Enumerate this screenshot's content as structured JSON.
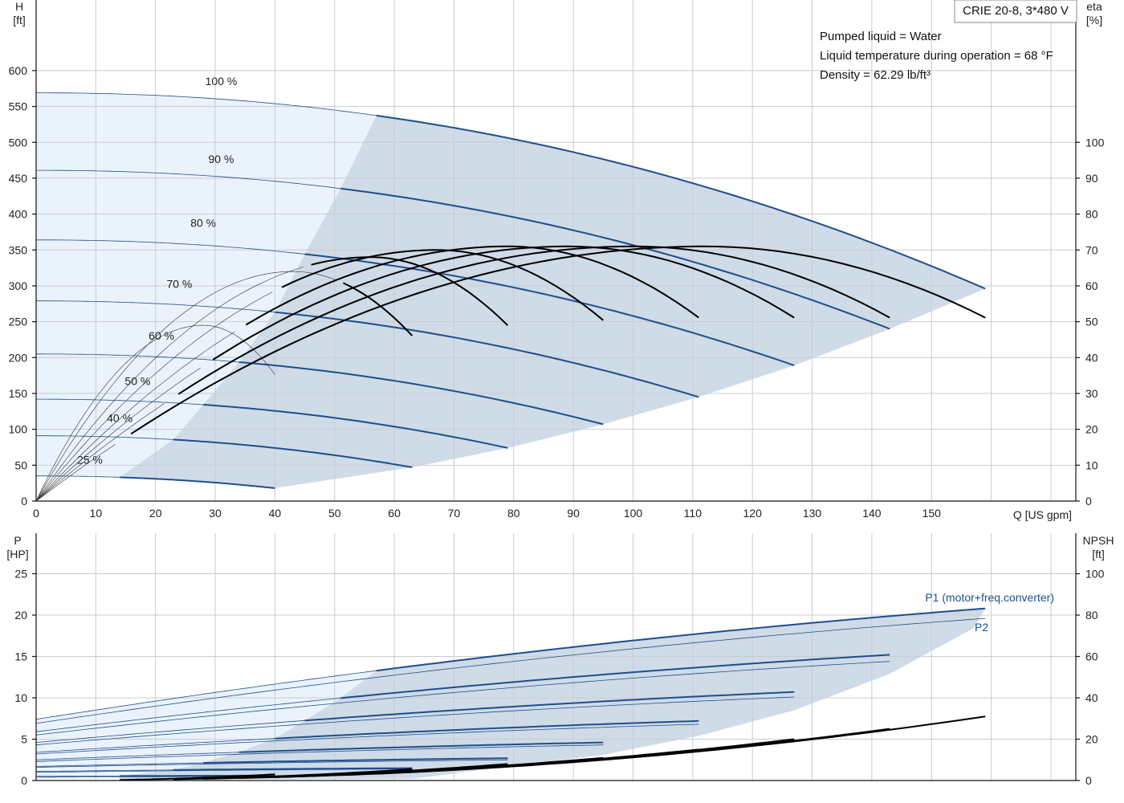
{
  "product_label": "CRIE 20-8, 3*480 V",
  "info_lines": [
    "Pumped liquid = Water",
    "Liquid temperature during operation = 68 °F",
    "Density = 62.29 lb/ft³"
  ],
  "colors": {
    "pump_curve": "#1f4e8c",
    "power_curve": "#1f4e8c",
    "efficiency_curve": "#000000",
    "region_light": "#eaf3fb",
    "region_dark": "#cfdbe7",
    "grid": "#c8ccd2"
  },
  "chart_data": [
    {
      "type": "line",
      "name": "head-efficiency",
      "xlabel": "Q [US gpm]",
      "ylabel_left": [
        "H",
        "[ft]"
      ],
      "ylabel_right": [
        "eta",
        "[%]"
      ],
      "xlim": [
        0,
        160
      ],
      "ylim_left": [
        0,
        630
      ],
      "ylim_right": [
        0,
        126
      ],
      "xticks": [
        0,
        10,
        20,
        30,
        40,
        50,
        60,
        70,
        80,
        90,
        100,
        110,
        120,
        130,
        140,
        150
      ],
      "yticks_left": [
        0,
        50,
        100,
        150,
        200,
        250,
        300,
        350,
        400,
        450,
        500,
        550,
        600
      ],
      "yticks_right": [
        0,
        10,
        20,
        30,
        40,
        50,
        60,
        70,
        80,
        90,
        100
      ],
      "grid": true,
      "speed_curves": [
        {
          "label": "100 %",
          "label_at": [
            31,
            580
          ],
          "shutoff": 569,
          "qmax": 159,
          "hend": 296,
          "bold_from": 57
        },
        {
          "label": "90 %",
          "label_at": [
            31,
            471
          ],
          "shutoff": 461,
          "qmax": 143,
          "hend": 240,
          "bold_from": 51
        },
        {
          "label": "80 %",
          "label_at": [
            28,
            382
          ],
          "shutoff": 364,
          "qmax": 127,
          "hend": 189,
          "bold_from": 45
        },
        {
          "label": "70 %",
          "label_at": [
            24,
            297
          ],
          "shutoff": 279,
          "qmax": 111,
          "hend": 145,
          "bold_from": 40
        },
        {
          "label": "60 %",
          "label_at": [
            21,
            225
          ],
          "shutoff": 205,
          "qmax": 95,
          "hend": 107,
          "bold_from": 34
        },
        {
          "label": "50 %",
          "label_at": [
            17,
            162
          ],
          "shutoff": 142,
          "qmax": 79,
          "hend": 74,
          "bold_from": 28
        },
        {
          "label": "40 %",
          "label_at": [
            14,
            110
          ],
          "shutoff": 91,
          "qmax": 63,
          "hend": 47,
          "bold_from": 23
        },
        {
          "label": "25 %",
          "label_at": [
            9,
            52
          ],
          "shutoff": 35,
          "qmax": 40,
          "hend": 18,
          "bold_from": 14
        }
      ],
      "efficiency_curves": [
        {
          "qmax": 40,
          "etamax": 49,
          "q_peak": 28
        },
        {
          "qmax": 63,
          "etamax": 64,
          "q_peak": 43
        },
        {
          "qmax": 79,
          "etamax": 68,
          "q_peak": 56
        },
        {
          "qmax": 95,
          "etamax": 70,
          "q_peak": 67
        },
        {
          "qmax": 111,
          "etamax": 71,
          "q_peak": 79
        },
        {
          "qmax": 127,
          "etamax": 71,
          "q_peak": 89
        },
        {
          "qmax": 143,
          "etamax": 71,
          "q_peak": 100
        },
        {
          "qmax": 159,
          "etamax": 71,
          "q_peak": 112
        }
      ]
    },
    {
      "type": "line",
      "name": "power-npsh",
      "xlabel": "Q [US gpm]",
      "ylabel_left": [
        "P",
        "[HP]"
      ],
      "ylabel_right": [
        "NPSH",
        "[ft]"
      ],
      "xlim": [
        0,
        160
      ],
      "ylim_left": [
        0,
        25
      ],
      "ylim_right": [
        0,
        100
      ],
      "yticks_left": [
        0,
        5,
        10,
        15,
        20,
        25
      ],
      "yticks_right": [
        0,
        20,
        40,
        60,
        80,
        100
      ],
      "grid": true,
      "series_labels": [
        "P1 (motor+freq.converter)",
        "P2"
      ],
      "power_curves": [
        {
          "qmax": 159,
          "p1_start": 7.4,
          "p1_end": 20.8,
          "p2_start": 6.9,
          "p2_end": 19.6,
          "bold_from": 57
        },
        {
          "qmax": 143,
          "p1_start": 5.9,
          "p1_end": 15.2,
          "p2_start": 5.5,
          "p2_end": 14.4,
          "bold_from": 51
        },
        {
          "qmax": 127,
          "p1_start": 4.6,
          "p1_end": 10.7,
          "p2_start": 4.3,
          "p2_end": 10.1,
          "bold_from": 45
        },
        {
          "qmax": 111,
          "p1_start": 3.4,
          "p1_end": 7.2,
          "p2_start": 3.2,
          "p2_end": 6.8,
          "bold_from": 40
        },
        {
          "qmax": 95,
          "p1_start": 2.5,
          "p1_end": 4.6,
          "p2_start": 2.3,
          "p2_end": 4.3,
          "bold_from": 34
        },
        {
          "qmax": 79,
          "p1_start": 1.7,
          "p1_end": 2.7,
          "p2_start": 1.6,
          "p2_end": 2.5,
          "bold_from": 28
        },
        {
          "qmax": 63,
          "p1_start": 1.1,
          "p1_end": 1.5,
          "p2_start": 1.0,
          "p2_end": 1.4,
          "bold_from": 23
        },
        {
          "qmax": 40,
          "p1_start": 0.5,
          "p1_end": 0.6,
          "p2_start": 0.4,
          "p2_end": 0.5,
          "bold_from": 14
        }
      ],
      "npsh_curves": [
        {
          "qmax": 159,
          "npsh_end": 31
        },
        {
          "qmax": 143,
          "npsh_end": 25
        },
        {
          "qmax": 127,
          "npsh_end": 20
        },
        {
          "qmax": 111,
          "npsh_end": 15
        },
        {
          "qmax": 95,
          "npsh_end": 11
        },
        {
          "qmax": 79,
          "npsh_end": 8
        },
        {
          "qmax": 63,
          "npsh_end": 5.5
        },
        {
          "qmax": 40,
          "npsh_end": 3
        }
      ]
    }
  ]
}
